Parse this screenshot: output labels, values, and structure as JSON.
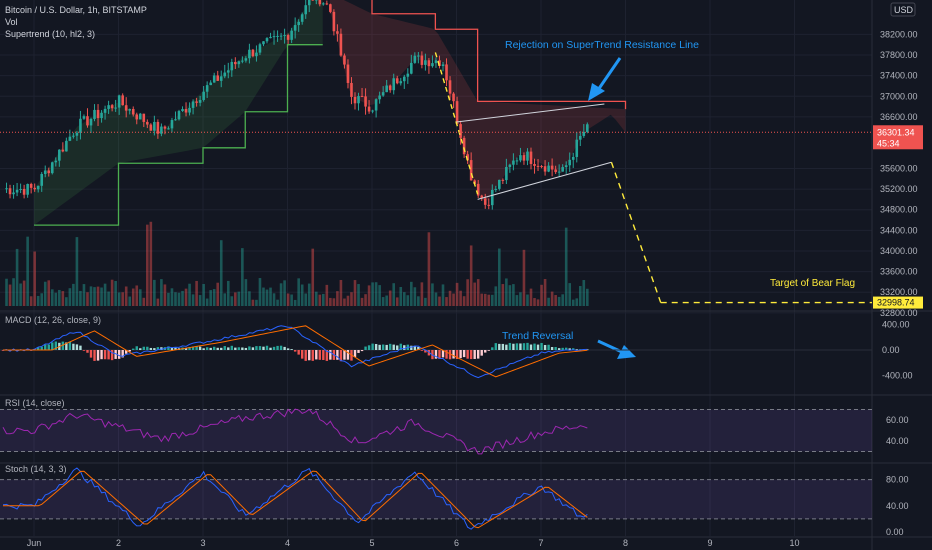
{
  "header": {
    "title": "Bitcoin / U.S. Dollar, 1h, BITSTAMP",
    "vol_label": "Vol",
    "supertrend_label": "Supertrend (10, hl2, 3)",
    "currency_badge": "USD"
  },
  "price_axis": {
    "ticks": [
      "38200.00",
      "37800.00",
      "37400.00",
      "37000.00",
      "36600.00",
      "35600.00",
      "35200.00",
      "34800.00",
      "34400.00",
      "34000.00",
      "33600.00",
      "33200.00",
      "32800.00"
    ],
    "top_tick_partial": "390",
    "current_price": "36301.34",
    "countdown": "45:34",
    "target_price": "32998.74"
  },
  "macd": {
    "label": "MACD (12, 26, close, 9)",
    "ticks": [
      "400.00",
      "0.00",
      "-400.00"
    ]
  },
  "rsi": {
    "label": "RSI (14, close)",
    "ticks": [
      "60.00",
      "40.00"
    ]
  },
  "stoch": {
    "label": "Stoch (14, 3, 3)",
    "ticks": [
      "80.00",
      "40.00",
      "0.00"
    ]
  },
  "time_axis": {
    "labels": [
      "Jun",
      "2",
      "3",
      "4",
      "5",
      "6",
      "7",
      "8",
      "9",
      "10"
    ]
  },
  "annotations": {
    "rejection": "Rejection on SuperTrend Resistance Line",
    "reversal": "Trend Reversal",
    "target": "Target of Bear Flag"
  },
  "colors": {
    "background": "#131722",
    "bull": "#26a69a",
    "bear": "#ef5350",
    "supertrend_up": "#4caf50",
    "supertrend_down": "#ef5350",
    "annotation_blue": "#2196f3",
    "target_yellow": "#ffeb3b",
    "macd_line": "#2962ff",
    "signal_line": "#ff6d00",
    "osc_purple": "#9c27b0",
    "stoch_d": "#ff6d00"
  },
  "chart_data": {
    "type": "candlestick",
    "instrument": "Bitcoin / U.S. Dollar",
    "timeframe": "1h",
    "x_axis_dates": [
      "Jun",
      "2",
      "3",
      "4",
      "5",
      "6",
      "7",
      "8",
      "9",
      "10"
    ],
    "ylim": [
      32700,
      39100
    ],
    "key_prices": {
      "current": 36301.34,
      "bear_flag_target": 32998.74
    },
    "price_path_anchors": [
      {
        "date": "Jun 1 00:00",
        "price": 35200
      },
      {
        "date": "Jun 1 12:00",
        "price": 36400
      },
      {
        "date": "Jun 2 00:00",
        "price": 36900
      },
      {
        "date": "Jun 2 12:00",
        "price": 36300
      },
      {
        "date": "Jun 3 00:00",
        "price": 37100
      },
      {
        "date": "Jun 3 12:00",
        "price": 37800
      },
      {
        "date": "Jun 4 00:00",
        "price": 38200
      },
      {
        "date": "Jun 4 08:00",
        "price": 39000
      },
      {
        "date": "Jun 4 12:00",
        "price": 38700
      },
      {
        "date": "Jun 4 18:00",
        "price": 37000
      },
      {
        "date": "Jun 5 00:00",
        "price": 36800
      },
      {
        "date": "Jun 5 12:00",
        "price": 37700
      },
      {
        "date": "Jun 5 20:00",
        "price": 37700
      },
      {
        "date": "Jun 6 04:00",
        "price": 35500
      },
      {
        "date": "Jun 6 08:00",
        "price": 34900
      },
      {
        "date": "Jun 6 18:00",
        "price": 35900
      },
      {
        "date": "Jun 7 06:00",
        "price": 35500
      },
      {
        "date": "Jun 7 12:00",
        "price": 36300
      },
      {
        "date": "Jun 7 20:00",
        "price": 36650
      },
      {
        "date": "Jun 8 00:00",
        "price": 36300
      }
    ],
    "supertrend_path": [
      {
        "date": "Jun 1 00:00",
        "value": 34500,
        "trend": "up"
      },
      {
        "date": "Jun 2 00:00",
        "value": 35700,
        "trend": "up"
      },
      {
        "date": "Jun 3 00:00",
        "value": 36000,
        "trend": "up"
      },
      {
        "date": "Jun 3 12:00",
        "value": 36700,
        "trend": "up"
      },
      {
        "date": "Jun 4 00:00",
        "value": 38000,
        "trend": "up"
      },
      {
        "date": "Jun 4 10:00",
        "value": 38000,
        "trend": "up"
      },
      {
        "date": "Jun 4 12:00",
        "value": 39000,
        "trend": "down"
      },
      {
        "date": "Jun 5 00:00",
        "value": 38600,
        "trend": "down"
      },
      {
        "date": "Jun 5 18:00",
        "value": 38300,
        "trend": "down"
      },
      {
        "date": "Jun 6 06:00",
        "value": 36900,
        "trend": "down"
      },
      {
        "date": "Jun 8 00:00",
        "value": 36750,
        "trend": "down"
      }
    ],
    "bear_flag": {
      "pole": [
        {
          "date": "Jun 5 18:00",
          "price": 37850
        },
        {
          "date": "Jun 6 06:00",
          "price": 35100
        }
      ],
      "upper_line": [
        {
          "date": "Jun 6 00:00",
          "price": 36500
        },
        {
          "date": "Jun 7 18:00",
          "price": 36850
        }
      ],
      "lower_line": [
        {
          "date": "Jun 6 06:00",
          "price": 35000
        },
        {
          "date": "Jun 7 20:00",
          "price": 35720
        }
      ],
      "projection": [
        {
          "date": "Jun 7 20:00",
          "price": 35720
        },
        {
          "date": "Jun 8 10:00",
          "price": 32998.74
        }
      ]
    },
    "volume": {
      "note": "hourly volume bars, relative scale"
    },
    "macd": {
      "params": "12, 26, close, 9",
      "path": [
        {
          "date": "Jun 1 00:00",
          "value": 0
        },
        {
          "date": "Jun 1 12:00",
          "value": 300
        },
        {
          "date": "Jun 2 00:00",
          "value": -100
        },
        {
          "date": "Jun 3 00:00",
          "value": 120
        },
        {
          "date": "Jun 4 00:00",
          "value": 380
        },
        {
          "date": "Jun 4 18:00",
          "value": -250
        },
        {
          "date": "Jun 5 12:00",
          "value": 80
        },
        {
          "date": "Jun 6 06:00",
          "value": -420
        },
        {
          "date": "Jun 7 00:00",
          "value": -50
        },
        {
          "date": "Jun 8 00:00",
          "value": 90
        }
      ]
    },
    "rsi": {
      "params": "14, close",
      "bands": [
        70,
        30
      ],
      "path": [
        {
          "date": "Jun 1 00:00",
          "value": 50
        },
        {
          "date": "Jun 1 12:00",
          "value": 65
        },
        {
          "date": "Jun 2 12:00",
          "value": 42
        },
        {
          "date": "Jun 3 12:00",
          "value": 62
        },
        {
          "date": "Jun 4 06:00",
          "value": 70
        },
        {
          "date": "Jun 4 20:00",
          "value": 38
        },
        {
          "date": "Jun 5 12:00",
          "value": 58
        },
        {
          "date": "Jun 6 06:00",
          "value": 30
        },
        {
          "date": "Jun 7 00:00",
          "value": 48
        },
        {
          "date": "Jun 7 20:00",
          "value": 60
        },
        {
          "date": "Jun 8 00:00",
          "value": 53
        }
      ]
    },
    "stoch": {
      "params": "14, 3, 3",
      "bands": [
        80,
        20
      ],
      "path": [
        {
          "date": "Jun 1 00:00",
          "value": 40
        },
        {
          "date": "Jun 1 12:00",
          "value": 95
        },
        {
          "date": "Jun 2 06:00",
          "value": 10
        },
        {
          "date": "Jun 3 00:00",
          "value": 90
        },
        {
          "date": "Jun 3 12:00",
          "value": 25
        },
        {
          "date": "Jun 4 06:00",
          "value": 95
        },
        {
          "date": "Jun 4 20:00",
          "value": 15
        },
        {
          "date": "Jun 5 12:00",
          "value": 92
        },
        {
          "date": "Jun 6 04:00",
          "value": 5
        },
        {
          "date": "Jun 7 00:00",
          "value": 70
        },
        {
          "date": "Jun 7 12:00",
          "value": 20
        },
        {
          "date": "Jun 7 20:00",
          "value": 95
        },
        {
          "date": "Jun 8 00:00",
          "value": 70
        }
      ]
    }
  }
}
